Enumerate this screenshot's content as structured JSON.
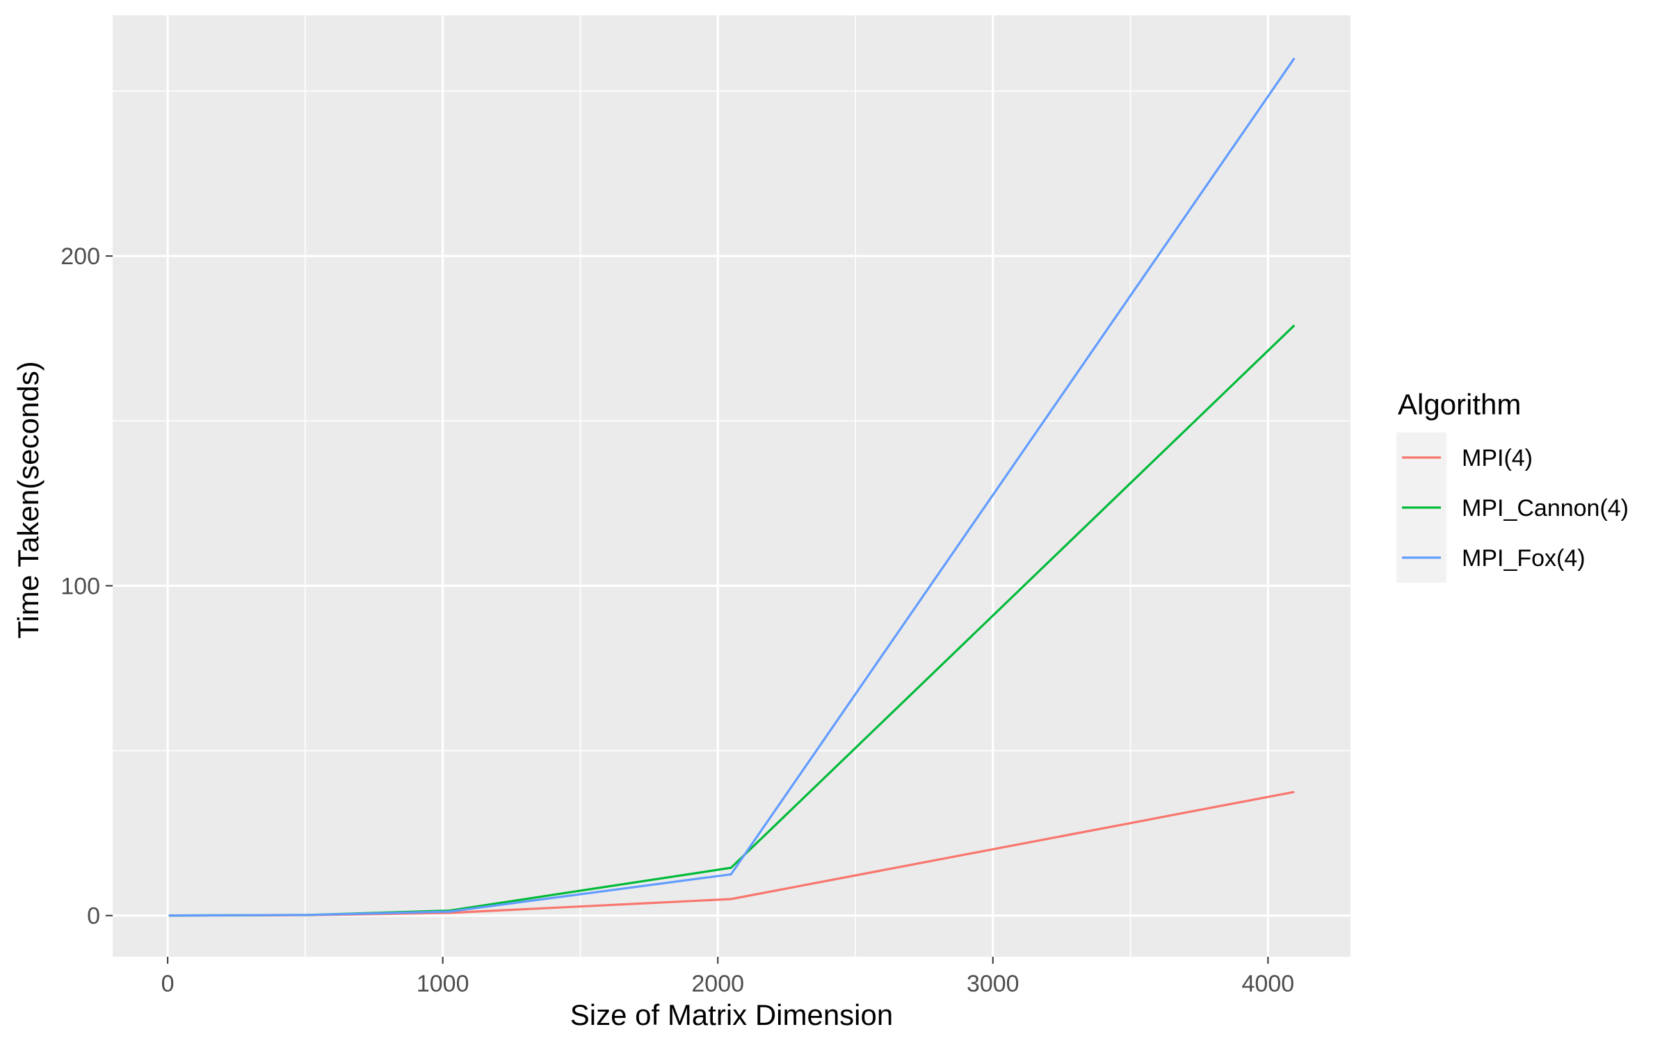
{
  "chart_data": {
    "type": "line",
    "title": "",
    "xlabel": "Size of Matrix Dimension",
    "ylabel": "Time Taken(seconds)",
    "xlim": [
      -200,
      4300
    ],
    "ylim": [
      -12.5,
      273
    ],
    "x_ticks": [
      0,
      1000,
      2000,
      3000,
      4000
    ],
    "x_tick_labels": [
      "0",
      "1000",
      "2000",
      "3000",
      "4000"
    ],
    "x_minor_ticks": [
      500,
      1500,
      2500,
      3500
    ],
    "y_ticks": [
      0,
      100,
      200
    ],
    "y_tick_labels": [
      "0",
      "100",
      "200"
    ],
    "y_minor_ticks": [
      50,
      150,
      250
    ],
    "grid": true,
    "panel_background": "#ebebeb",
    "grid_color": "#ffffff",
    "legend": {
      "title": "Algorithm",
      "position": "right",
      "key_background": "#f2f2f2"
    },
    "x": [
      4,
      512,
      1024,
      2048,
      4096
    ],
    "series": [
      {
        "name": "MPI(4)",
        "color": "#f8766d",
        "values": [
          0,
          0.1,
          0.8,
          5.0,
          37.5
        ]
      },
      {
        "name": "MPI_Cannon(4)",
        "color": "#00ba38",
        "values": [
          0,
          0.2,
          1.5,
          14.5,
          179
        ]
      },
      {
        "name": "MPI_Fox(4)",
        "color": "#619cff",
        "values": [
          0,
          0.2,
          1.2,
          12.5,
          260
        ]
      }
    ]
  }
}
